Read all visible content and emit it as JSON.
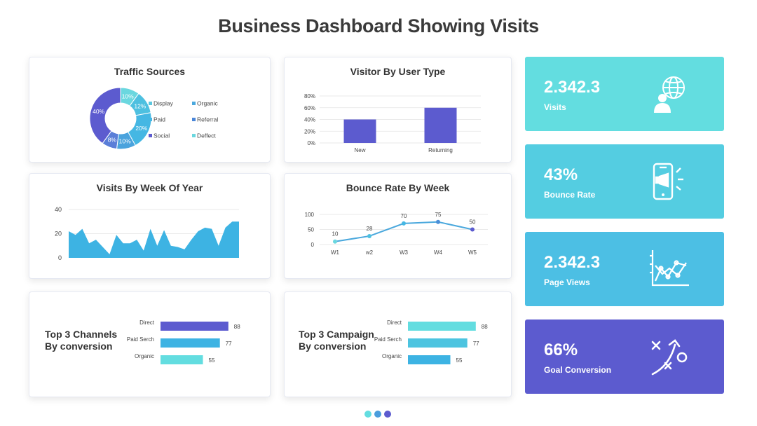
{
  "page": {
    "title": "Business Dashboard Showing Visits"
  },
  "colors": {
    "cyan": "#63dde0",
    "sky": "#4cc4e0",
    "blue": "#3db3e3",
    "indigo": "#5c5bcf",
    "teal": "#62d8d9"
  },
  "traffic_sources": {
    "title": "Traffic Sources",
    "slices": [
      {
        "label": "10%",
        "value": 10,
        "color": "#6ad7df"
      },
      {
        "label": "12%",
        "value": 12,
        "color": "#4ec0e0"
      },
      {
        "label": "20%",
        "value": 20,
        "color": "#45b7e3"
      },
      {
        "label": "10%",
        "value": 10,
        "color": "#4aa3dd"
      },
      {
        "label": "8%",
        "value": 8,
        "color": "#5a7ed8"
      },
      {
        "label": "40%",
        "value": 40,
        "color": "#5c5bcf"
      }
    ],
    "legend": [
      {
        "label": "Display",
        "color": "#5cc7df"
      },
      {
        "label": "Organic",
        "color": "#4aa8dd"
      },
      {
        "label": "Paid",
        "color": "#45b7e3"
      },
      {
        "label": "Referral",
        "color": "#4a86d8"
      },
      {
        "label": "Social",
        "color": "#5c5bcf"
      },
      {
        "label": "Deffect",
        "color": "#6ad7df"
      }
    ]
  },
  "chart_data": [
    {
      "type": "bar",
      "title": "Visitor By User Type",
      "categories": [
        "New",
        "Returning"
      ],
      "values": [
        40,
        60
      ],
      "yticks": [
        "80%",
        "60%",
        "40%",
        "20%",
        "0%"
      ],
      "ylim": [
        0,
        80
      ]
    },
    {
      "type": "area",
      "title": "Visits By Week Of Year",
      "yticks": [
        "40",
        "20",
        "0"
      ],
      "ylim": [
        0,
        40
      ],
      "values": [
        22,
        19,
        24,
        12,
        15,
        9,
        3,
        19,
        12,
        12,
        15,
        6,
        24,
        10,
        23,
        10,
        9,
        7,
        15,
        22,
        25,
        24,
        10,
        25,
        30,
        30
      ]
    },
    {
      "type": "line",
      "title": "Bounce Rate By Week",
      "categories": [
        "W1",
        "w2",
        "W3",
        "W4",
        "W5"
      ],
      "values": [
        10,
        28,
        70,
        75,
        50
      ],
      "yticks": [
        "100",
        "50",
        "0"
      ],
      "ylim": [
        0,
        100
      ]
    },
    {
      "type": "bar",
      "title": "Top 3 Channels By conversion",
      "categories": [
        "Direct",
        "Paid Serch",
        "Organic"
      ],
      "values": [
        88,
        77,
        55
      ]
    },
    {
      "type": "bar",
      "title": "Top 3 Campaign By conversion",
      "categories": [
        "Direct",
        "Paid Serch",
        "Organic"
      ],
      "values": [
        88,
        77,
        55
      ]
    }
  ],
  "titles": {
    "visitor": "Visitor By User Type",
    "visits_week": "Visits By Week Of Year",
    "bounce": "Bounce Rate By Week",
    "channels_line1": "Top 3 Channels",
    "channels_line2": "By conversion",
    "campaign_line1": "Top 3 Campaign",
    "campaign_line2": "By conversion"
  },
  "stats": [
    {
      "value": "2.342.3",
      "label": "Visits",
      "color": "#63dde0",
      "icon": "globe-user-icon"
    },
    {
      "value": "43%",
      "label": "Bounce Rate",
      "color": "#54cde1",
      "icon": "phone-megaphone-icon"
    },
    {
      "value": "2.342.3",
      "label": "Page Views",
      "color": "#4cbfe4",
      "icon": "line-graph-icon"
    },
    {
      "value": "66%",
      "label": "Goal Conversion",
      "color": "#5c5bcf",
      "icon": "strategy-icon"
    }
  ],
  "pagination": {
    "dots": [
      "#63dde0",
      "#4a9ddd",
      "#5c5bcf"
    ]
  }
}
